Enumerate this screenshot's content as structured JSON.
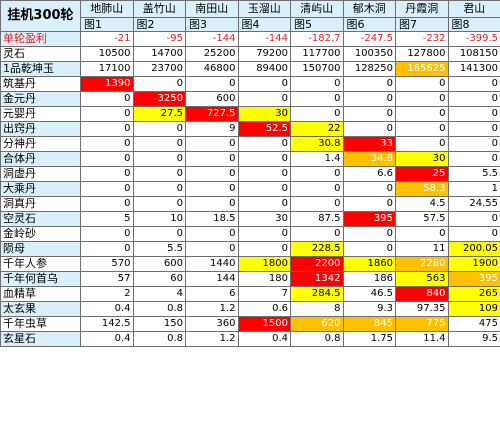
{
  "title": "挂机300轮",
  "mountains": [
    "地肺山",
    "盖竹山",
    "南田山",
    "玉溜山",
    "清屿山",
    "郁木洞",
    "丹霞洞",
    "君山"
  ],
  "figures": [
    "图1",
    "图2",
    "图3",
    "图4",
    "图5",
    "图6",
    "图7",
    "图8"
  ],
  "rows": [
    {
      "label": "单轮盈利",
      "style": "loss",
      "values": [
        "-21",
        "-95",
        "-144",
        "-144",
        "-182.7",
        "-247.5",
        "-232",
        "-399.5"
      ],
      "hl": [
        "",
        "",
        "",
        "",
        "",
        "",
        "",
        ""
      ]
    },
    {
      "label": "灵石",
      "values": [
        "10500",
        "14700",
        "25200",
        "79200",
        "117700",
        "100350",
        "127800",
        "108150"
      ],
      "hl": [
        "",
        "",
        "",
        "",
        "",
        "",
        "",
        ""
      ]
    },
    {
      "label": "1品乾坤玉",
      "values": [
        "17100",
        "23700",
        "46800",
        "89400",
        "150700",
        "128250",
        "165625",
        "141300"
      ],
      "hl": [
        "",
        "",
        "",
        "",
        "",
        "",
        "orange",
        ""
      ]
    },
    {
      "label": "筑基丹",
      "values": [
        "1390",
        "0",
        "0",
        "0",
        "0",
        "0",
        "0",
        "0"
      ],
      "hl": [
        "red",
        "",
        "",
        "",
        "",
        "",
        "",
        ""
      ]
    },
    {
      "label": "金元丹",
      "values": [
        "0",
        "3250",
        "600",
        "0",
        "0",
        "0",
        "0",
        "0"
      ],
      "hl": [
        "",
        "red",
        "",
        "",
        "",
        "",
        "",
        ""
      ]
    },
    {
      "label": "元婴丹",
      "values": [
        "0",
        "27.5",
        "727.5",
        "30",
        "0",
        "0",
        "0",
        "0"
      ],
      "hl": [
        "",
        "yellow",
        "red",
        "yellow",
        "",
        "",
        "",
        ""
      ]
    },
    {
      "label": "出窍丹",
      "values": [
        "0",
        "0",
        "9",
        "52.5",
        "22",
        "0",
        "0",
        "0"
      ],
      "hl": [
        "",
        "",
        "",
        "red",
        "yellow",
        "",
        "",
        ""
      ]
    },
    {
      "label": "分神丹",
      "values": [
        "0",
        "0",
        "0",
        "0",
        "30.8",
        "33",
        "0",
        "0"
      ],
      "hl": [
        "",
        "",
        "",
        "",
        "yellow",
        "red",
        "",
        ""
      ]
    },
    {
      "label": "合体丹",
      "values": [
        "0",
        "0",
        "0",
        "0",
        "1.4",
        "34.8",
        "30",
        "0"
      ],
      "hl": [
        "",
        "",
        "",
        "",
        "",
        "orange",
        "yellow",
        ""
      ]
    },
    {
      "label": "洞虚丹",
      "values": [
        "0",
        "0",
        "0",
        "0",
        "0",
        "6.6",
        "25",
        "5.5"
      ],
      "hl": [
        "",
        "",
        "",
        "",
        "",
        "",
        "red",
        ""
      ]
    },
    {
      "label": "大乘丹",
      "values": [
        "0",
        "0",
        "0",
        "0",
        "0",
        "0",
        "58.3",
        "1"
      ],
      "hl": [
        "",
        "",
        "",
        "",
        "",
        "",
        "orange",
        ""
      ]
    },
    {
      "label": "洞真丹",
      "values": [
        "0",
        "0",
        "0",
        "0",
        "0",
        "0",
        "4.5",
        "24.55"
      ],
      "hl": [
        "",
        "",
        "",
        "",
        "",
        "",
        "",
        ""
      ]
    },
    {
      "label": "空灵石",
      "values": [
        "5",
        "10",
        "18.5",
        "30",
        "87.5",
        "395",
        "57.5",
        "0"
      ],
      "hl": [
        "",
        "",
        "",
        "",
        "",
        "red",
        "",
        ""
      ]
    },
    {
      "label": "金岭砂",
      "values": [
        "0",
        "0",
        "0",
        "0",
        "0",
        "0",
        "0",
        "0"
      ],
      "hl": [
        "",
        "",
        "",
        "",
        "",
        "",
        "",
        ""
      ]
    },
    {
      "label": "陨母",
      "values": [
        "0",
        "5.5",
        "0",
        "0",
        "228.5",
        "0",
        "11",
        "200.05"
      ],
      "hl": [
        "",
        "",
        "",
        "",
        "yellow",
        "",
        "",
        "yellow"
      ]
    },
    {
      "label": "千年人参",
      "values": [
        "570",
        "600",
        "1440",
        "1800",
        "2200",
        "1860",
        "2280",
        "1900"
      ],
      "hl": [
        "",
        "",
        "",
        "yellow",
        "red",
        "yellow",
        "orange",
        "yellow"
      ]
    },
    {
      "label": "千年何首乌",
      "values": [
        "57",
        "60",
        "144",
        "180",
        "1342",
        "186",
        "563",
        "395"
      ],
      "hl": [
        "",
        "",
        "",
        "",
        "red",
        "",
        "yellow",
        "orange"
      ]
    },
    {
      "label": "血精草",
      "values": [
        "2",
        "4",
        "6",
        "7",
        "284.5",
        "46.5",
        "840",
        "265"
      ],
      "hl": [
        "",
        "",
        "",
        "",
        "yellow",
        "",
        "red",
        "yellow"
      ]
    },
    {
      "label": "太玄果",
      "values": [
        "0.4",
        "0.8",
        "1.2",
        "0.6",
        "8",
        "9.3",
        "97.35",
        "109"
      ],
      "hl": [
        "",
        "",
        "",
        "",
        "",
        "",
        "",
        "yellow"
      ]
    },
    {
      "label": "千年虫草",
      "values": [
        "142.5",
        "150",
        "360",
        "1500",
        "620",
        "845",
        "775",
        "475"
      ],
      "hl": [
        "",
        "",
        "",
        "red",
        "orange",
        "orange",
        "orange",
        ""
      ]
    },
    {
      "label": "玄星石",
      "values": [
        "0.4",
        "0.8",
        "1.2",
        "0.4",
        "0.8",
        "1.75",
        "11.4",
        "9.5"
      ],
      "hl": [
        "",
        "",
        "",
        "",
        "",
        "",
        "",
        ""
      ]
    }
  ]
}
